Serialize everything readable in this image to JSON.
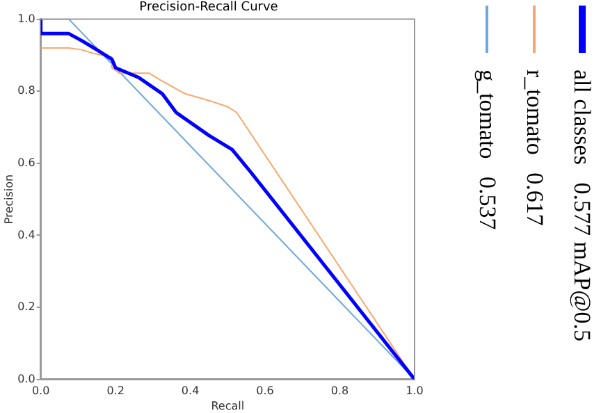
{
  "chart_data": {
    "type": "line",
    "title": "Precision-Recall Curve",
    "xlabel": "Recall",
    "ylabel": "Precision",
    "xlim": [
      0,
      1
    ],
    "ylim": [
      0,
      1
    ],
    "xticks": [
      {
        "value": 0,
        "label": "0.0"
      },
      0.2,
      0.4,
      0.6,
      0.8,
      {
        "value": 1,
        "label": "1.0"
      }
    ],
    "yticks": [
      {
        "value": 0,
        "label": "0.0"
      },
      0.2,
      0.4,
      0.6,
      0.8,
      {
        "value": 1,
        "label": "1.0"
      }
    ],
    "grid": false,
    "legend": "right",
    "marker": "none",
    "series": [
      {
        "name": "all classes 0.577 mAP@0.5",
        "color": "#0000ff",
        "x": [
          0,
          0,
          0.075,
          0.11,
          0.15,
          0.19,
          0.2,
          0.262,
          0.325,
          0.362,
          0.45,
          0.512,
          0.562,
          1.0
        ],
        "values": [
          1.0,
          0.96,
          0.96,
          0.94,
          0.915,
          0.889,
          0.865,
          0.838,
          0.793,
          0.741,
          0.677,
          0.638,
          0.575,
          0.0
        ]
      },
      {
        "name": "r_tomato 0.617",
        "color": "#f9a66c",
        "x": [
          0,
          0.075,
          0.11,
          0.14,
          0.19,
          0.19,
          0.21,
          0.29,
          0.32,
          0.386,
          0.45,
          0.5,
          0.524,
          1.0
        ],
        "values": [
          0.92,
          0.92,
          0.915,
          0.905,
          0.895,
          0.865,
          0.85,
          0.85,
          0.831,
          0.793,
          0.774,
          0.757,
          0.741,
          0.0
        ]
      },
      {
        "name": "g_tomato 0.537",
        "color": "#6fa8dc",
        "x": [
          0,
          0.075,
          1.0
        ],
        "values": [
          1.0,
          1.0,
          0.0
        ]
      }
    ]
  }
}
